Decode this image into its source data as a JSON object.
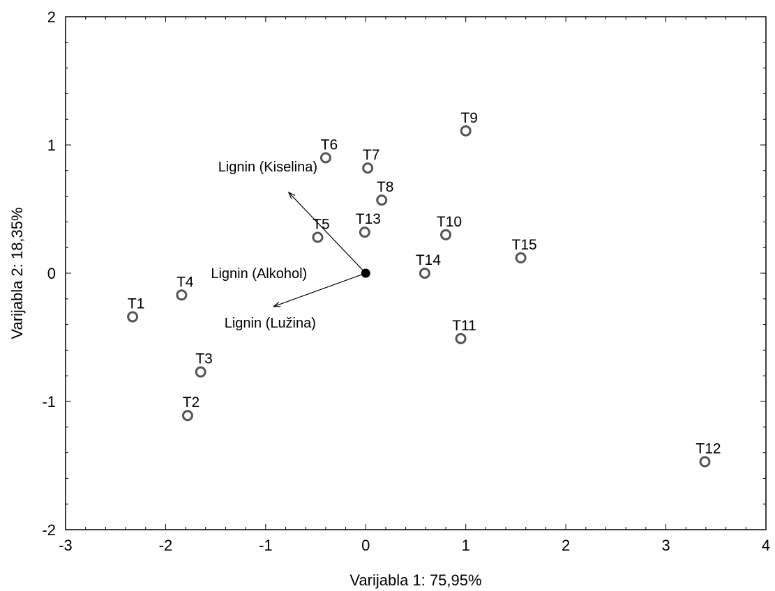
{
  "chart_data": {
    "type": "scatter",
    "xlabel": "Varijabla 1:   75,95%",
    "ylabel": "Varijabla 2:   18,35%",
    "xlim": [
      -3,
      4
    ],
    "ylim": [
      -2,
      2
    ],
    "xticks": [
      "-3",
      "-2",
      "-1",
      "0",
      "1",
      "2",
      "3",
      "4"
    ],
    "yticks": [
      "-2",
      "-1",
      "0",
      "1",
      "2"
    ],
    "grid": false,
    "points": [
      {
        "label": "T1",
        "x": -2.33,
        "y": -0.34
      },
      {
        "label": "T2",
        "x": -1.78,
        "y": -1.11
      },
      {
        "label": "T3",
        "x": -1.65,
        "y": -0.77
      },
      {
        "label": "T4",
        "x": -1.84,
        "y": -0.17
      },
      {
        "label": "T5",
        "x": -0.48,
        "y": 0.28
      },
      {
        "label": "T6",
        "x": -0.4,
        "y": 0.9
      },
      {
        "label": "T7",
        "x": 0.02,
        "y": 0.82
      },
      {
        "label": "T8",
        "x": 0.16,
        "y": 0.57
      },
      {
        "label": "T9",
        "x": 1.0,
        "y": 1.11
      },
      {
        "label": "T10",
        "x": 0.8,
        "y": 0.3
      },
      {
        "label": "T11",
        "x": 0.95,
        "y": -0.51
      },
      {
        "label": "T12",
        "x": 3.39,
        "y": -1.47
      },
      {
        "label": "T13",
        "x": -0.01,
        "y": 0.32
      },
      {
        "label": "T14",
        "x": 0.59,
        "y": 0.0
      },
      {
        "label": "T15",
        "x": 1.55,
        "y": 0.12
      }
    ],
    "origin": {
      "x": 0,
      "y": 0
    },
    "vectors": [
      {
        "label": "Lignin (Kiselina)",
        "x": -0.77,
        "y": 0.63
      },
      {
        "label": "Lignin (Alkohol)",
        "x": 0,
        "y": 0
      },
      {
        "label": "Lignin (Lužina)",
        "x": -0.92,
        "y": -0.26
      }
    ],
    "colors": {
      "marker_stroke": "#555555",
      "axis": "#000000"
    }
  }
}
